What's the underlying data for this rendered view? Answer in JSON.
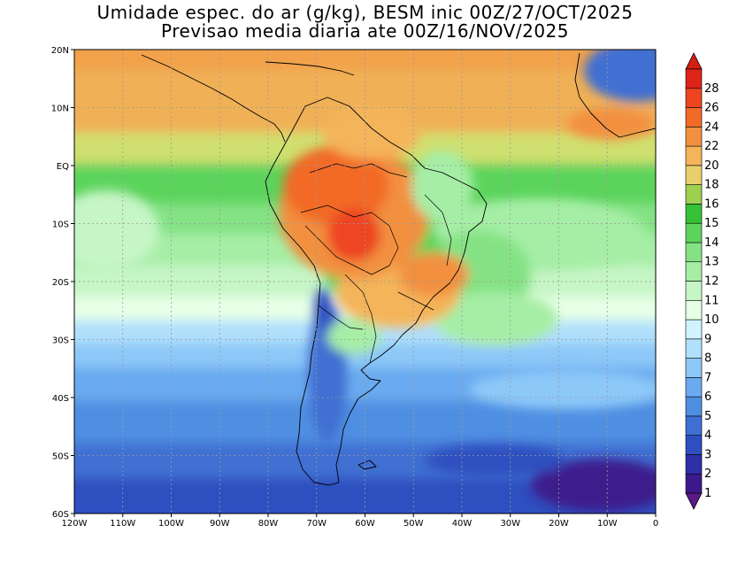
{
  "title": {
    "line1": "Umidade espec. do ar (g/kg), BESM inic 00Z/27/OCT/2025",
    "line2": "Previsao media diaria ate 00Z/16/NOV/2025"
  },
  "map": {
    "lon_range": [
      -120,
      0
    ],
    "lat_range": [
      -60,
      20
    ],
    "lon_ticks": [
      {
        "value": -120,
        "label": "120W"
      },
      {
        "value": -110,
        "label": "110W"
      },
      {
        "value": -100,
        "label": "100W"
      },
      {
        "value": -90,
        "label": "90W"
      },
      {
        "value": -80,
        "label": "80W"
      },
      {
        "value": -70,
        "label": "70W"
      },
      {
        "value": -60,
        "label": "60W"
      },
      {
        "value": -50,
        "label": "50W"
      },
      {
        "value": -40,
        "label": "40W"
      },
      {
        "value": -30,
        "label": "30W"
      },
      {
        "value": -20,
        "label": "20W"
      },
      {
        "value": -10,
        "label": "10W"
      },
      {
        "value": 0,
        "label": "0"
      }
    ],
    "lat_ticks": [
      {
        "value": 20,
        "label": "20N"
      },
      {
        "value": 10,
        "label": "10N"
      },
      {
        "value": 0,
        "label": "EQ"
      },
      {
        "value": -10,
        "label": "10S"
      },
      {
        "value": -20,
        "label": "20S"
      },
      {
        "value": -30,
        "label": "30S"
      },
      {
        "value": -40,
        "label": "40S"
      },
      {
        "value": -50,
        "label": "50S"
      },
      {
        "value": -60,
        "label": "60S"
      }
    ],
    "grid": "dotted"
  },
  "colorbar": {
    "levels": [
      "1",
      "2",
      "3",
      "4",
      "5",
      "6",
      "7",
      "8",
      "9",
      "10",
      "11",
      "12",
      "13",
      "14",
      "15",
      "16",
      "18",
      "20",
      "22",
      "24",
      "26",
      "28"
    ],
    "colors": [
      "#3d1a8c",
      "#2f2fa8",
      "#2f4fc0",
      "#3f6fd2",
      "#4f8fe2",
      "#6aaaf0",
      "#8cc8f8",
      "#b0e0fc",
      "#d0f4ff",
      "#e6ffe6",
      "#c6f5c6",
      "#a6eea6",
      "#84e284",
      "#5cd45c",
      "#36c236",
      "#9ed050",
      "#e8cf6a",
      "#f4b45a",
      "#f29040",
      "#f26a28",
      "#ee4420",
      "#de2418"
    ],
    "under_color": "#5a1a8a",
    "over_color": "#d41e10"
  }
}
